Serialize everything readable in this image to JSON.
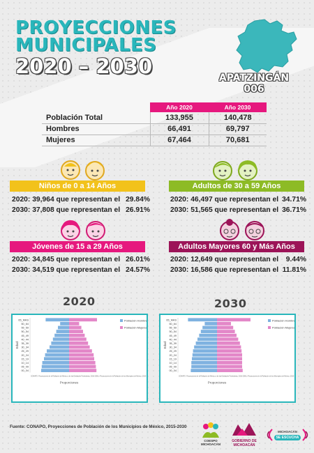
{
  "header": {
    "line1": "PROYECCIONES",
    "line2": "MUNICIPALES",
    "line3": "2020 – 2030",
    "municipio": "APATZINGÁN",
    "clave": "006"
  },
  "table": {
    "col1": "Año 2020",
    "col2": "Año 2030",
    "rows": [
      {
        "label": "Población Total",
        "v2020": "133,955",
        "v2030": "140,478"
      },
      {
        "label": "Hombres",
        "v2020": "66,491",
        "v2030": "69,797"
      },
      {
        "label": "Mujeres",
        "v2020": "67,464",
        "v2030": "70,681"
      }
    ]
  },
  "groups": {
    "ninos": {
      "title": "Niños de 0 a 14 Años",
      "color": "#f2c21b",
      "s2020": "2020:  39,964 que representan el",
      "p2020": "29.84%",
      "s2030": "2030:  37,808 que representan el",
      "p2030": "26.91%"
    },
    "adultos": {
      "title": "Adultos de 30 a 59 Años",
      "color": "#8dbb25",
      "s2020": "2020:  46,497 que representan el",
      "p2020": "34.71%",
      "s2030": "2030:  51,565 que representan el",
      "p2030": "36.71%"
    },
    "jovenes": {
      "title": "Jóvenes de 15 a 29 Años",
      "color": "#e6187e",
      "s2020": "2020:  34,845 que representan el",
      "p2020": "26.01%",
      "s2030": "2030:  34,519 que representan el",
      "p2030": "24.57%"
    },
    "mayores": {
      "title": "Adultos Mayores  60 y Más Años",
      "color": "#9c1458",
      "s2020": "2020:  12,649 que representan el",
      "p2020": "9.44%",
      "s2030": "2030:  16,586 que representan el",
      "p2030": "11.81%"
    }
  },
  "pyramids": {
    "year1": "2020",
    "year2": "2030",
    "ylabel": "Edad",
    "xlabel": "Proporciones",
    "legend_h": "Población Hombres",
    "legend_m": "Población Mujeres",
    "source": "CONAPO. Proyecciones de la Población de México y de las Entidades Federativas, 2016-2050 y Proyecciones de la Población de los Municipios de México, 2015-2030",
    "ages": [
      "65_MAS",
      "60_64",
      "55_59",
      "50_54",
      "45_49",
      "40_44",
      "35_39",
      "30_34",
      "25_29",
      "20_24",
      "15_19",
      "10_14",
      "05_09",
      "00_04"
    ],
    "colors": {
      "hombres": "#7fb2e0",
      "mujeres": "#e387c8"
    }
  },
  "chart_data": [
    {
      "type": "bar",
      "title": "2020",
      "ylabel": "Edad",
      "xlabel": "Proporciones",
      "categories": [
        "65_MAS",
        "60_64",
        "55_59",
        "50_54",
        "45_49",
        "40_44",
        "35_39",
        "30_34",
        "25_29",
        "20_24",
        "15_19",
        "10_14",
        "05_09",
        "00_04"
      ],
      "series": [
        {
          "name": "Población Hombres",
          "values": [
            4.2,
            1.6,
            2.0,
            2.3,
            2.6,
            2.9,
            3.2,
            3.5,
            4.0,
            4.3,
            4.5,
            4.8,
            4.9,
            5.0
          ]
        },
        {
          "name": "Población Mujeres",
          "values": [
            5.0,
            1.8,
            2.2,
            2.5,
            2.8,
            3.1,
            3.4,
            3.7,
            4.1,
            4.4,
            4.5,
            4.7,
            4.8,
            4.9
          ]
        }
      ]
    },
    {
      "type": "bar",
      "title": "2030",
      "ylabel": "Edad",
      "xlabel": "Proporciones",
      "categories": [
        "65_MAS",
        "60_64",
        "55_59",
        "50_54",
        "45_49",
        "40_44",
        "35_39",
        "30_34",
        "25_29",
        "20_24",
        "15_19",
        "10_14",
        "05_09",
        "00_04"
      ],
      "series": [
        {
          "name": "Población Hombres",
          "values": [
            5.2,
            2.2,
            2.6,
            2.9,
            3.2,
            3.5,
            3.8,
            4.1,
            4.3,
            4.4,
            4.5,
            4.6,
            4.6,
            4.7
          ]
        },
        {
          "name": "Población Mujeres",
          "values": [
            6.0,
            2.5,
            2.9,
            3.2,
            3.5,
            3.8,
            4.1,
            4.3,
            4.4,
            4.5,
            4.5,
            4.5,
            4.5,
            4.6
          ]
        }
      ]
    }
  ],
  "footer": {
    "source": "Fuente: CONAPO, Proyecciones de Población de los Municipios de México, 2015-2030",
    "logo1": "COESPO MICHOACÁN",
    "logo2": "GOBIERNO DE MICHOACÁN",
    "logo3_a": "MICHOACÁN",
    "logo3_b": "SE ESCUCHA"
  }
}
